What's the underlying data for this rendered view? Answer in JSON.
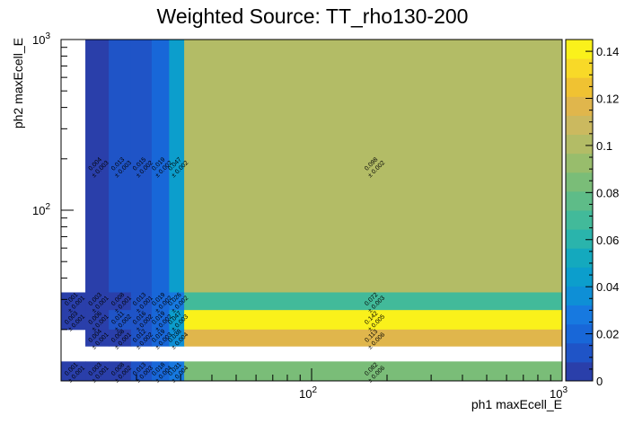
{
  "chart_data": {
    "type": "heatmap",
    "title": "Weighted Source: TT_rho130-200",
    "xlabel": "ph1 maxEcell_E",
    "ylabel": "ph2 maxEcell_E",
    "xscale": "log",
    "yscale": "log",
    "xlim": [
      10,
      1000
    ],
    "ylim": [
      10,
      1000
    ],
    "x_ticks": [
      {
        "value": 100,
        "base": "10",
        "exp": "2"
      },
      {
        "value": 1000,
        "base": "10",
        "exp": "3"
      }
    ],
    "y_ticks": [
      {
        "value": 100,
        "base": "10",
        "exp": "2"
      },
      {
        "value": 1000,
        "base": "10",
        "exp": "3"
      }
    ],
    "x_edges": [
      10,
      12.5,
      15.5,
      19,
      23,
      27,
      31,
      1000
    ],
    "y_edges": [
      10,
      13,
      16,
      20,
      26,
      33,
      1000
    ],
    "z_range": [
      0,
      0.145
    ],
    "colorbar_ticks": [
      "0",
      "0.02",
      "0.04",
      "0.06",
      "0.08",
      "0.1",
      "0.12",
      "0.14"
    ],
    "colorbar_tick_values": [
      0,
      0.02,
      0.04,
      0.06,
      0.08,
      0.1,
      0.12,
      0.14
    ],
    "cells": [
      {
        "ix": 0,
        "iy": 5,
        "value": null
      },
      {
        "ix": 1,
        "iy": 5,
        "value": 0.004,
        "label": "0.004",
        "err": "± 0.003"
      },
      {
        "ix": 2,
        "iy": 5,
        "value": 0.013,
        "label": "0.013",
        "err": "± 0.003"
      },
      {
        "ix": 3,
        "iy": 5,
        "value": 0.015,
        "label": "0.015",
        "err": "± 0.002"
      },
      {
        "ix": 4,
        "iy": 5,
        "value": 0.019,
        "label": "0.019",
        "err": "± 0.002"
      },
      {
        "ix": 5,
        "iy": 5,
        "value": 0.047,
        "label": "0.047",
        "err": "± 0.002"
      },
      {
        "ix": 6,
        "iy": 5,
        "value": 0.098,
        "label": "0.098",
        "err": "± 0.002"
      },
      {
        "ix": 0,
        "iy": 4,
        "value": 0.001,
        "label": "0.001",
        "err": "± 0.001"
      },
      {
        "ix": 1,
        "iy": 4,
        "value": 0.003,
        "label": "0.003",
        "err": "± 0.001"
      },
      {
        "ix": 2,
        "iy": 4,
        "value": 0.008,
        "label": "0.008",
        "err": "± 0.001"
      },
      {
        "ix": 3,
        "iy": 4,
        "value": 0.013,
        "label": "0.013",
        "err": "± 0.001"
      },
      {
        "ix": 4,
        "iy": 4,
        "value": 0.019,
        "label": "0.019",
        "err": "± 0.002"
      },
      {
        "ix": 5,
        "iy": 4,
        "value": 0.026,
        "label": "0.026",
        "err": "± 0.002"
      },
      {
        "ix": 6,
        "iy": 4,
        "value": 0.072,
        "label": "0.072",
        "err": "± 0.003"
      },
      {
        "ix": 0,
        "iy": 3,
        "value": 0.003,
        "label": "0.003",
        "err": "± 0.001"
      },
      {
        "ix": 1,
        "iy": 3,
        "value": 0.006,
        "label": "0.006",
        "err": "± 0.001"
      },
      {
        "ix": 2,
        "iy": 3,
        "value": 0.011,
        "label": "0.011",
        "err": "± 0.002"
      },
      {
        "ix": 3,
        "iy": 3,
        "value": 0.016,
        "label": "0.016",
        "err": "± 0.002"
      },
      {
        "ix": 4,
        "iy": 3,
        "value": 0.019,
        "label": "0.019",
        "err": "± 0.002"
      },
      {
        "ix": 5,
        "iy": 3,
        "value": 0.047,
        "label": "0.047",
        "err": "± 0.003"
      },
      {
        "ix": 6,
        "iy": 3,
        "value": 0.142,
        "label": "0.142",
        "err": "± 0.005"
      },
      {
        "ix": 0,
        "iy": 2,
        "value": null
      },
      {
        "ix": 1,
        "iy": 2,
        "value": 0.004,
        "label": "0.004",
        "err": "± 0.001"
      },
      {
        "ix": 2,
        "iy": 2,
        "value": 0.008,
        "label": "0.008",
        "err": "± 0.001"
      },
      {
        "ix": 3,
        "iy": 2,
        "value": 0.012,
        "label": "0.012",
        "err": "± 0.002"
      },
      {
        "ix": 4,
        "iy": 2,
        "value": 0.019,
        "label": "0.019",
        "err": "± 0.003"
      },
      {
        "ix": 5,
        "iy": 2,
        "value": 0.038,
        "label": "0.038",
        "err": "± 0.004"
      },
      {
        "ix": 6,
        "iy": 2,
        "value": 0.113,
        "label": "0.113",
        "err": "± 0.006"
      },
      {
        "ix": 0,
        "iy": 1,
        "value": null
      },
      {
        "ix": 1,
        "iy": 1,
        "value": null
      },
      {
        "ix": 2,
        "iy": 1,
        "value": null
      },
      {
        "ix": 3,
        "iy": 1,
        "value": null
      },
      {
        "ix": 4,
        "iy": 1,
        "value": null
      },
      {
        "ix": 5,
        "iy": 1,
        "value": null
      },
      {
        "ix": 6,
        "iy": 1,
        "value": null
      },
      {
        "ix": 0,
        "iy": 0,
        "value": 0.001,
        "label": "0.001",
        "err": "± 0.001"
      },
      {
        "ix": 1,
        "iy": 0,
        "value": 0.003,
        "label": "0.003",
        "err": "± 0.001"
      },
      {
        "ix": 2,
        "iy": 0,
        "value": 0.008,
        "label": "0.008",
        "err": "± 0.002"
      },
      {
        "ix": 3,
        "iy": 0,
        "value": 0.013,
        "label": "0.013",
        "err": "± 0.003"
      },
      {
        "ix": 4,
        "iy": 0,
        "value": 0.018,
        "label": "0.018",
        "err": "± 0.004"
      },
      {
        "ix": 5,
        "iy": 0,
        "value": 0.031,
        "label": "0.031",
        "err": "± 0.004"
      },
      {
        "ix": 6,
        "iy": 0,
        "value": 0.082,
        "label": "0.082",
        "err": "± 0.006"
      }
    ],
    "palette": [
      "#2a3faa",
      "#1f54c7",
      "#1867d8",
      "#1779e0",
      "#0e8fd6",
      "#0c9ecc",
      "#14a9be",
      "#2ab4ac",
      "#42ba9a",
      "#5ebc88",
      "#7abd78",
      "#98bd6c",
      "#b3bc66",
      "#cbb95f",
      "#e0b64c",
      "#f0c232",
      "#f8d928",
      "#faf11b"
    ]
  }
}
